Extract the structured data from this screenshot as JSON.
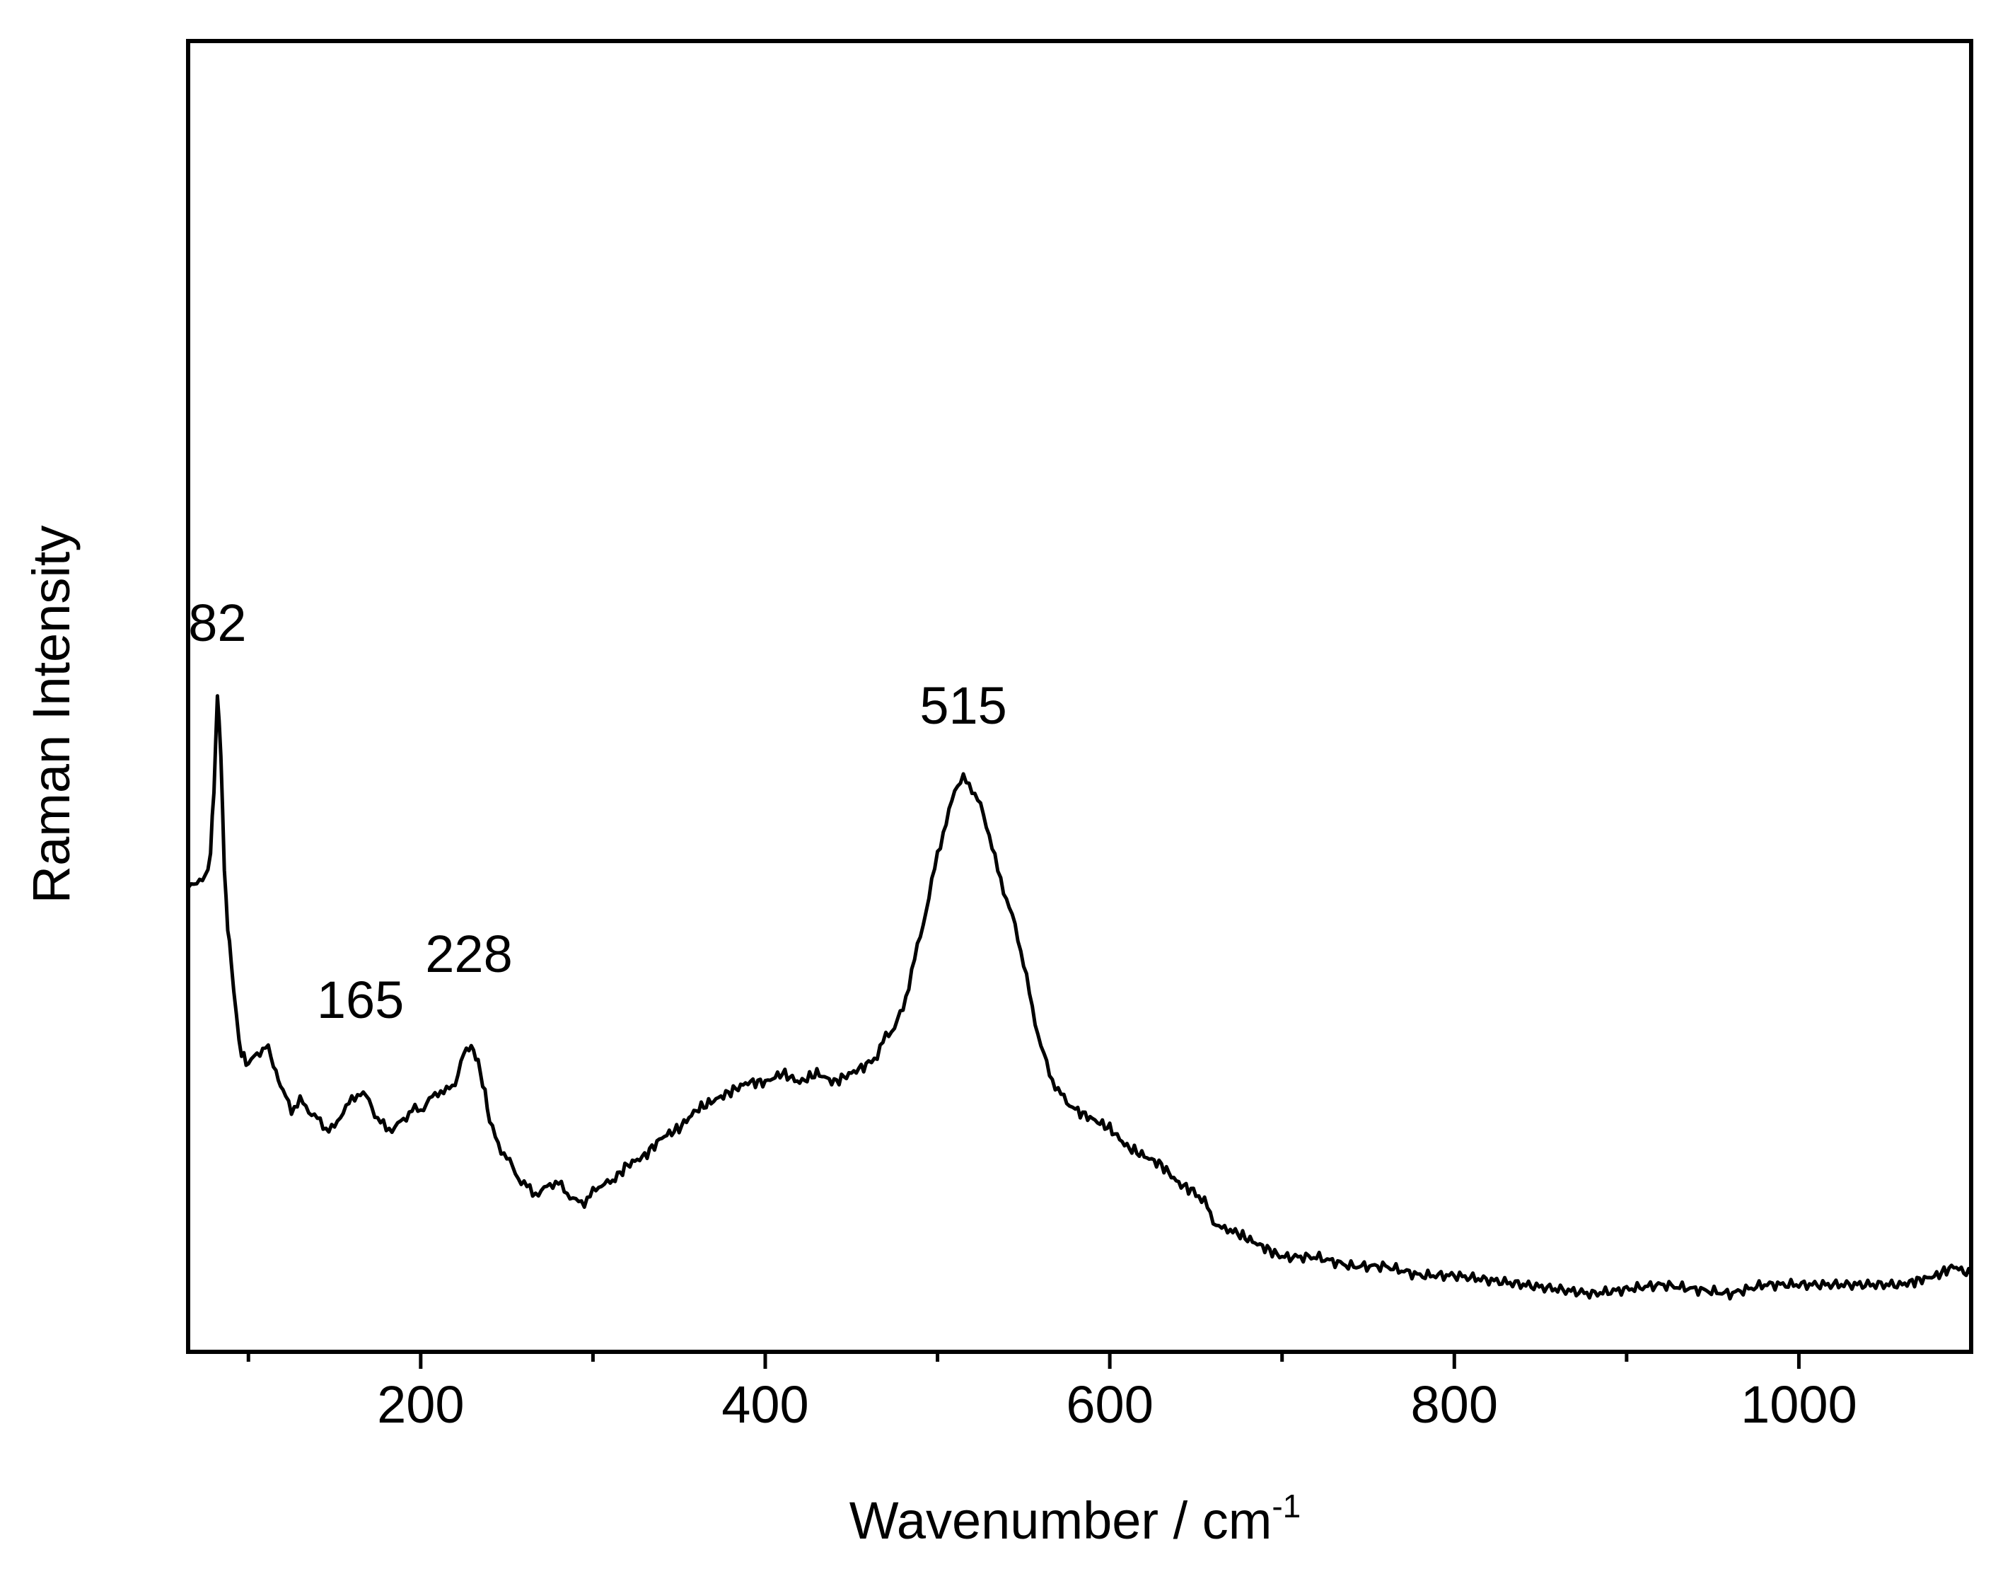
{
  "chart_data": {
    "type": "line",
    "title": "",
    "xlabel": "Wavenumber / cm",
    "xlabel_superscript": "-1",
    "ylabel": "Raman Intensity",
    "xlim": [
      65,
      1100
    ],
    "ylim": [
      0,
      1
    ],
    "x_ticks": [
      200,
      400,
      600,
      800,
      1000
    ],
    "x_minor_ticks": [
      100,
      300,
      500,
      700,
      900
    ],
    "y_ticks_shown": false,
    "grid": false,
    "line_color": "#000000",
    "series": [
      {
        "x": [
          65,
          70,
          75,
          78,
          80,
          82,
          84,
          86,
          88,
          90,
          93,
          96,
          100,
          105,
          110,
          113,
          116,
          120,
          125,
          130,
          135,
          140,
          145,
          150,
          155,
          160,
          165,
          170,
          175,
          180,
          185,
          190,
          195,
          200,
          205,
          210,
          215,
          220,
          225,
          228,
          232,
          236,
          240,
          245,
          250,
          255,
          260,
          265,
          270,
          275,
          280,
          285,
          290,
          295,
          300,
          305,
          310,
          320,
          330,
          340,
          350,
          360,
          370,
          380,
          390,
          400,
          410,
          420,
          430,
          440,
          450,
          460,
          465,
          470,
          475,
          480,
          485,
          490,
          495,
          500,
          505,
          510,
          515,
          520,
          525,
          530,
          535,
          540,
          545,
          550,
          555,
          560,
          565,
          570,
          575,
          580,
          590,
          600,
          610,
          620,
          630,
          640,
          650,
          655,
          660,
          665,
          670,
          680,
          690,
          700,
          720,
          740,
          760,
          780,
          800,
          820,
          840,
          860,
          880,
          900,
          920,
          940,
          960,
          980,
          1000,
          1020,
          1040,
          1060,
          1070,
          1080,
          1090,
          1100
        ],
        "y": [
          0.51,
          0.52,
          0.52,
          0.55,
          0.62,
          0.72,
          0.66,
          0.53,
          0.47,
          0.43,
          0.37,
          0.33,
          0.32,
          0.33,
          0.34,
          0.33,
          0.31,
          0.29,
          0.27,
          0.28,
          0.27,
          0.26,
          0.25,
          0.25,
          0.27,
          0.28,
          0.29,
          0.28,
          0.26,
          0.25,
          0.25,
          0.26,
          0.27,
          0.27,
          0.28,
          0.29,
          0.29,
          0.3,
          0.33,
          0.34,
          0.33,
          0.3,
          0.26,
          0.23,
          0.22,
          0.2,
          0.19,
          0.18,
          0.18,
          0.19,
          0.19,
          0.18,
          0.17,
          0.17,
          0.18,
          0.19,
          0.19,
          0.21,
          0.22,
          0.24,
          0.25,
          0.27,
          0.28,
          0.29,
          0.3,
          0.3,
          0.31,
          0.3,
          0.31,
          0.3,
          0.31,
          0.32,
          0.33,
          0.35,
          0.36,
          0.38,
          0.42,
          0.46,
          0.5,
          0.55,
          0.58,
          0.62,
          0.63,
          0.62,
          0.6,
          0.57,
          0.53,
          0.5,
          0.47,
          0.43,
          0.38,
          0.34,
          0.31,
          0.29,
          0.28,
          0.27,
          0.26,
          0.25,
          0.23,
          0.22,
          0.21,
          0.19,
          0.18,
          0.17,
          0.15,
          0.14,
          0.14,
          0.13,
          0.12,
          0.11,
          0.11,
          0.1,
          0.1,
          0.09,
          0.09,
          0.085,
          0.08,
          0.075,
          0.07,
          0.075,
          0.08,
          0.075,
          0.07,
          0.08,
          0.08,
          0.08,
          0.08,
          0.08,
          0.085,
          0.09,
          0.1,
          0.09
        ]
      }
    ],
    "annotations": [
      {
        "text": "82",
        "x": 82,
        "y": 0.78
      },
      {
        "text": "165",
        "x": 165,
        "y": 0.37
      },
      {
        "text": "228",
        "x": 228,
        "y": 0.42
      },
      {
        "text": "515",
        "x": 515,
        "y": 0.69
      }
    ]
  }
}
